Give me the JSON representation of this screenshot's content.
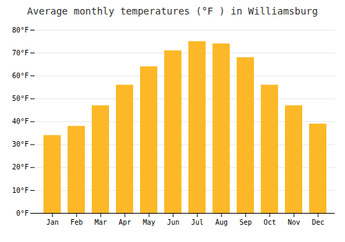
{
  "chart_data": {
    "type": "bar",
    "title": "Average monthly temperatures (°F ) in Williamsburg",
    "categories": [
      "Jan",
      "Feb",
      "Mar",
      "Apr",
      "May",
      "Jun",
      "Jul",
      "Aug",
      "Sep",
      "Oct",
      "Nov",
      "Dec"
    ],
    "values": [
      34,
      38,
      47,
      56,
      64,
      71,
      75,
      74,
      68,
      56,
      47,
      39
    ],
    "color": "#FDB827",
    "ylim": [
      0,
      80
    ],
    "yticks": [
      {
        "value": 0,
        "label": "0°F"
      },
      {
        "value": 10,
        "label": "10°F"
      },
      {
        "value": 20,
        "label": "20°F"
      },
      {
        "value": 30,
        "label": "30°F"
      },
      {
        "value": 40,
        "label": "40°F"
      },
      {
        "value": 50,
        "label": "50°F"
      },
      {
        "value": 60,
        "label": "60°F"
      },
      {
        "value": 70,
        "label": "70°F"
      },
      {
        "value": 80,
        "label": "80°F"
      }
    ],
    "grid": true
  }
}
